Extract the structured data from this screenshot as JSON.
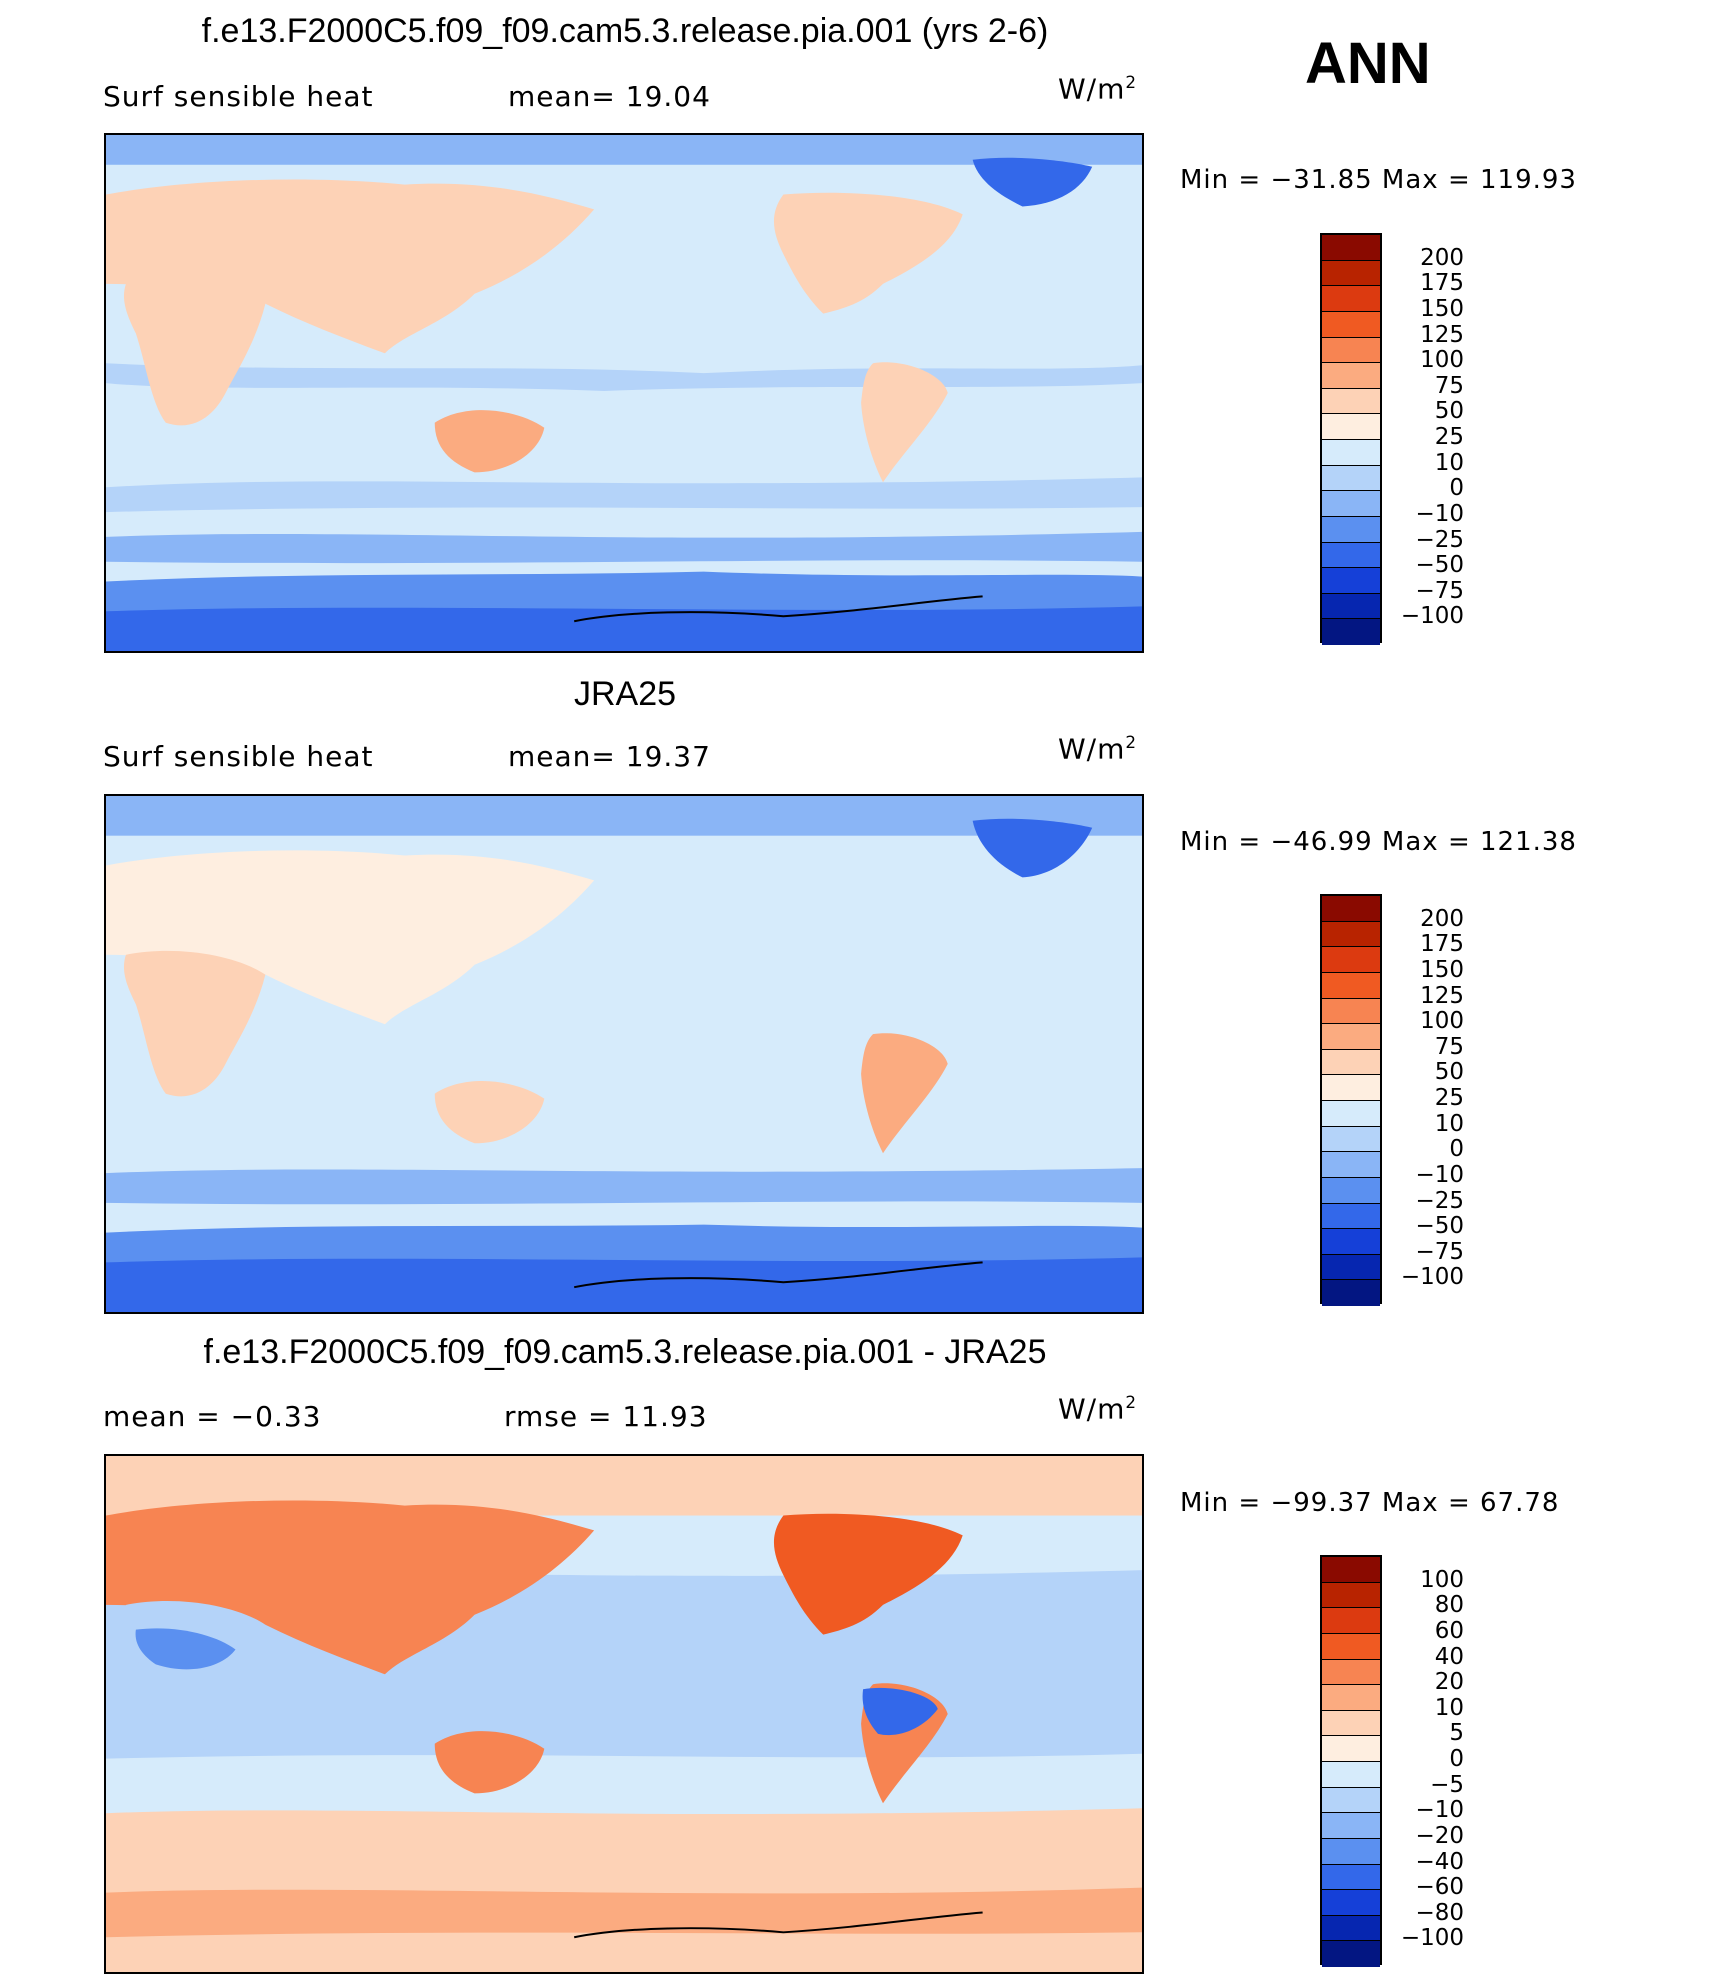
{
  "season": "ANN",
  "panels": [
    {
      "title": "f.e13.F2000C5.f09_f09.cam5.3.release.pia.001 (yrs 2-6)",
      "variable": "Surf  sensible  heat",
      "stat1": "mean=    19.04",
      "stat2": "",
      "units_base": "W/m",
      "units_exp": "2",
      "minmax": "Min  =  −31.85  Max  =  119.93",
      "colorbar_levels": [
        "200",
        "175",
        "150",
        "125",
        "100",
        "75",
        "50",
        "25",
        "10",
        "0",
        "−10",
        "−25",
        "−50",
        "−75",
        "−100"
      ],
      "colorbar_colors": [
        "#8a0a00",
        "#b82300",
        "#dc3a10",
        "#f05a22",
        "#f78452",
        "#fbab80",
        "#fdd2b6",
        "#feeee0",
        "#d6ebfb",
        "#b4d3f9",
        "#8ab5f6",
        "#5b90f0",
        "#3368ea",
        "#1540d8",
        "#0626b0",
        "#031682"
      ]
    },
    {
      "title": "JRA25",
      "variable": "Surf  sensible  heat",
      "stat1": "mean=    19.37",
      "stat2": "",
      "units_base": "W/m",
      "units_exp": "2",
      "minmax": "Min  =  −46.99  Max  =  121.38",
      "colorbar_levels": [
        "200",
        "175",
        "150",
        "125",
        "100",
        "75",
        "50",
        "25",
        "10",
        "0",
        "−10",
        "−25",
        "−50",
        "−75",
        "−100"
      ],
      "colorbar_colors": [
        "#8a0a00",
        "#b82300",
        "#dc3a10",
        "#f05a22",
        "#f78452",
        "#fbab80",
        "#fdd2b6",
        "#feeee0",
        "#d6ebfb",
        "#b4d3f9",
        "#8ab5f6",
        "#5b90f0",
        "#3368ea",
        "#1540d8",
        "#0626b0",
        "#031682"
      ]
    },
    {
      "title": "f.e13.F2000C5.f09_f09.cam5.3.release.pia.001 - JRA25",
      "variable": "",
      "stat1": "mean  =    −0.33",
      "stat2": "rmse  =    11.93",
      "units_base": "W/m",
      "units_exp": "2",
      "minmax": "Min  =  −99.37  Max  =   67.78",
      "colorbar_levels": [
        "100",
        "80",
        "60",
        "40",
        "20",
        "10",
        "5",
        "0",
        "−5",
        "−10",
        "−20",
        "−40",
        "−60",
        "−80",
        "−100"
      ],
      "colorbar_colors": [
        "#8a0a00",
        "#b82300",
        "#dc3a10",
        "#f05a22",
        "#f78452",
        "#fbab80",
        "#fdd2b6",
        "#feeee0",
        "#d6ebfb",
        "#b4d3f9",
        "#8ab5f6",
        "#5b90f0",
        "#3368ea",
        "#1540d8",
        "#0626b0",
        "#031682"
      ]
    }
  ]
}
